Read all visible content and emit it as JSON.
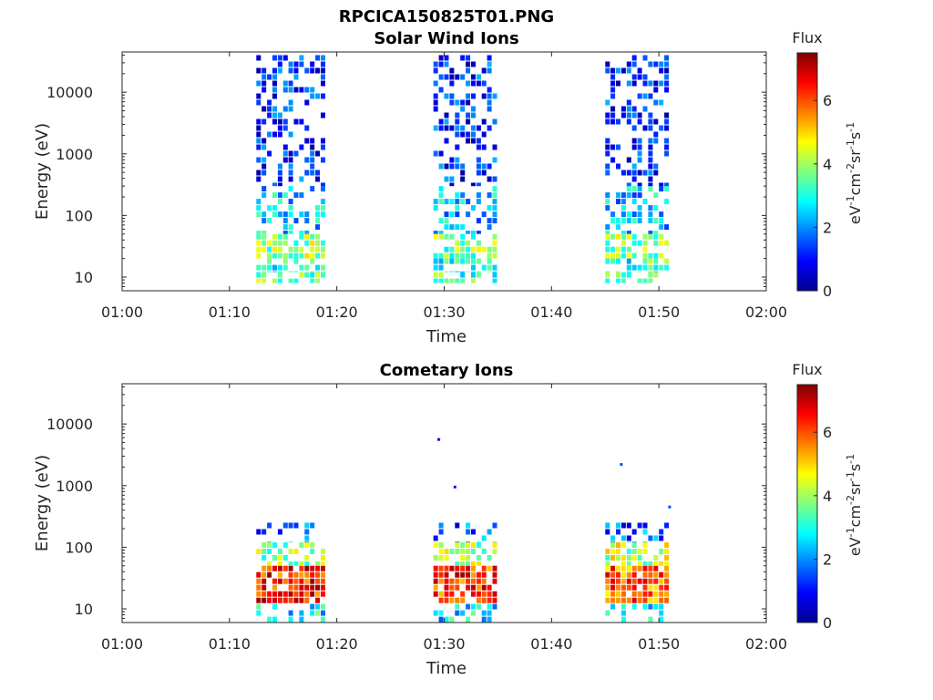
{
  "figure_title": "RPCICA150825T01.PNG",
  "colormap": "jet",
  "chart_data": [
    {
      "type": "heatmap",
      "title": "Solar Wind Ions",
      "xlabel": "Time",
      "ylabel": "Energy (eV)",
      "xlim": [
        "01:00",
        "02:00"
      ],
      "x_ticks": [
        "01:00",
        "01:10",
        "01:20",
        "01:30",
        "01:40",
        "01:50",
        "02:00"
      ],
      "y_scale": "log",
      "ylim": [
        6,
        45000
      ],
      "y_ticks": [
        10,
        100,
        1000,
        10000
      ],
      "y_tick_labels": [
        "10",
        "100",
        "1000",
        "10000"
      ],
      "grid": false,
      "colorbar": {
        "title": "Flux",
        "unit_base": [
          "eV",
          "cm",
          "sr",
          "s"
        ],
        "unit_exp": [
          "-1",
          "-2",
          "-1",
          "-1"
        ],
        "range": [
          0,
          7.5
        ],
        "ticks": [
          "0",
          "2",
          "4",
          "6"
        ]
      },
      "bursts": [
        {
          "start": "01:12.5",
          "end": "01:19",
          "bands": [
            {
              "e_min": 8,
              "e_max": 12,
              "flux": 3.4,
              "density": 0.7
            },
            {
              "e_min": 12,
              "e_max": 20,
              "flux": 3.2,
              "density": 0.6
            },
            {
              "e_min": 20,
              "e_max": 50,
              "flux": 3.9,
              "density": 0.75
            },
            {
              "e_min": 50,
              "e_max": 300,
              "flux": 2.5,
              "density": 0.5
            },
            {
              "e_min": 300,
              "e_max": 40000,
              "flux": 1.2,
              "density": 0.42
            }
          ]
        },
        {
          "start": "01:29",
          "end": "01:35",
          "bands": [
            {
              "e_min": 8,
              "e_max": 12,
              "flux": 3.4,
              "density": 0.6
            },
            {
              "e_min": 12,
              "e_max": 20,
              "flux": 3.2,
              "density": 0.55
            },
            {
              "e_min": 20,
              "e_max": 50,
              "flux": 3.7,
              "density": 0.7
            },
            {
              "e_min": 50,
              "e_max": 300,
              "flux": 2.4,
              "density": 0.5
            },
            {
              "e_min": 300,
              "e_max": 40000,
              "flux": 1.2,
              "density": 0.4
            }
          ]
        },
        {
          "start": "01:45",
          "end": "01:51",
          "bands": [
            {
              "e_min": 8,
              "e_max": 12,
              "flux": 3.4,
              "density": 0.65
            },
            {
              "e_min": 12,
              "e_max": 20,
              "flux": 3.2,
              "density": 0.55
            },
            {
              "e_min": 20,
              "e_max": 50,
              "flux": 3.8,
              "density": 0.7
            },
            {
              "e_min": 50,
              "e_max": 300,
              "flux": 2.4,
              "density": 0.5
            },
            {
              "e_min": 300,
              "e_max": 40000,
              "flux": 1.2,
              "density": 0.42
            }
          ]
        }
      ],
      "isolated_points": []
    },
    {
      "type": "heatmap",
      "title": "Cometary Ions",
      "xlabel": "Time",
      "ylabel": "Energy (eV)",
      "xlim": [
        "01:00",
        "02:00"
      ],
      "x_ticks": [
        "01:00",
        "01:10",
        "01:20",
        "01:30",
        "01:40",
        "01:50",
        "02:00"
      ],
      "y_scale": "log",
      "ylim": [
        6,
        45000
      ],
      "y_ticks": [
        10,
        100,
        1000,
        10000
      ],
      "y_tick_labels": [
        "10",
        "100",
        "1000",
        "10000"
      ],
      "grid": false,
      "colorbar": {
        "title": "Flux",
        "unit_base": [
          "eV",
          "cm",
          "sr",
          "s"
        ],
        "unit_exp": [
          "-1",
          "-2",
          "-1",
          "-1"
        ],
        "range": [
          0,
          7.5
        ],
        "ticks": [
          "0",
          "2",
          "4",
          "6"
        ]
      },
      "bursts": [
        {
          "start": "01:12.5",
          "end": "01:19",
          "bands": [
            {
              "e_min": 6,
              "e_max": 12,
              "flux": 2.8,
              "density": 0.5
            },
            {
              "e_min": 12,
              "e_max": 50,
              "flux": 6.3,
              "density": 0.9
            },
            {
              "e_min": 50,
              "e_max": 120,
              "flux": 3.8,
              "density": 0.65
            },
            {
              "e_min": 120,
              "e_max": 250,
              "flux": 1.5,
              "density": 0.3
            }
          ]
        },
        {
          "start": "01:29",
          "end": "01:35",
          "bands": [
            {
              "e_min": 6,
              "e_max": 12,
              "flux": 2.6,
              "density": 0.5
            },
            {
              "e_min": 12,
              "e_max": 50,
              "flux": 6.2,
              "density": 0.9
            },
            {
              "e_min": 50,
              "e_max": 120,
              "flux": 4.0,
              "density": 0.65
            },
            {
              "e_min": 120,
              "e_max": 250,
              "flux": 1.6,
              "density": 0.3
            }
          ]
        },
        {
          "start": "01:45",
          "end": "01:51",
          "bands": [
            {
              "e_min": 6,
              "e_max": 12,
              "flux": 2.6,
              "density": 0.5
            },
            {
              "e_min": 12,
              "e_max": 50,
              "flux": 5.8,
              "density": 0.88
            },
            {
              "e_min": 50,
              "e_max": 120,
              "flux": 4.2,
              "density": 0.65
            },
            {
              "e_min": 120,
              "e_max": 250,
              "flux": 1.6,
              "density": 0.3
            }
          ]
        }
      ],
      "isolated_points": [
        {
          "t": "01:29.5",
          "e": 5600,
          "flux": 1.0
        },
        {
          "t": "01:31",
          "e": 950,
          "flux": 1.0
        },
        {
          "t": "01:46.5",
          "e": 2200,
          "flux": 1.5
        },
        {
          "t": "01:51",
          "e": 450,
          "flux": 1.5
        }
      ]
    }
  ]
}
